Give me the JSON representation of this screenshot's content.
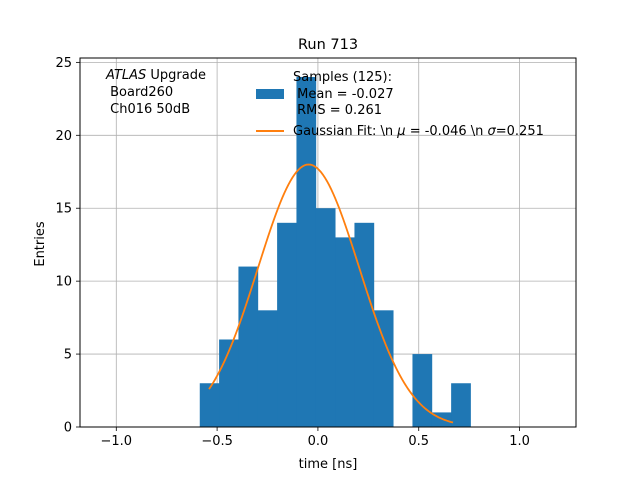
{
  "chart_data": {
    "type": "bar",
    "title": "Run 713",
    "xlabel": "time [ns]",
    "ylabel": "Entries",
    "xlim": [
      -1.18,
      1.28
    ],
    "ylim": [
      0,
      25.3
    ],
    "grid": true,
    "x_ticks": [
      -1.0,
      -0.5,
      0.0,
      0.5,
      1.0
    ],
    "x_tick_labels": [
      "−1.0",
      "−0.5",
      "0.0",
      "0.5",
      "1.0"
    ],
    "y_ticks": [
      0,
      5,
      10,
      15,
      20,
      25
    ],
    "y_tick_labels": [
      "0",
      "5",
      "10",
      "15",
      "20",
      "25"
    ],
    "annotation": {
      "atlas": "ATLAS",
      "upgrade": " Upgrade",
      "line2": " Board260",
      "line3": " Ch016 50dB"
    },
    "series": [
      {
        "name_lines": [
          "Samples (125):",
          " Mean = -0.027",
          " RMS = 0.261"
        ],
        "kind": "histogram",
        "color": "#1f77b4",
        "bin_width": 0.0959,
        "bin_edges_start": -0.586,
        "counts": [
          3,
          6,
          11,
          8,
          14,
          24,
          15,
          13,
          14,
          8,
          0,
          5,
          1,
          3
        ]
      },
      {
        "name_prefix": "Gaussian Fit: \\n ",
        "name_mu": "μ",
        "name_mid": " = -0.046 \\n ",
        "name_sigma": "σ",
        "name_suffix": "=0.251",
        "kind": "line",
        "color": "#ff7f0e",
        "mu": -0.046,
        "sigma": 0.251,
        "amplitude": 18.0,
        "x_range": [
          -0.54,
          0.67
        ]
      }
    ]
  }
}
